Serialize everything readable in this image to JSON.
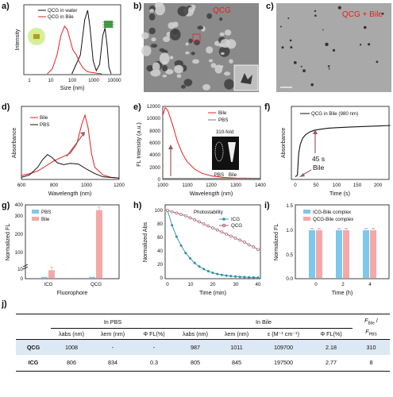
{
  "panels": {
    "a": {
      "label": "a)",
      "xlabel": "Size (nm)",
      "ylabel": "Intensity",
      "ticks": [
        "1",
        "10",
        "100",
        "1000",
        "10000"
      ],
      "legend": [
        "QCG in water",
        "QCG in Bile"
      ]
    },
    "b": {
      "label": "b)",
      "caption": "QCG"
    },
    "c": {
      "label": "c)",
      "caption": "QCG + Bile"
    },
    "d": {
      "label": "d)",
      "xlabel": "Wavelength (nm)",
      "ylabel": "Absorbance",
      "xticks": [
        "600",
        "800",
        "1000",
        "1200"
      ],
      "legend": [
        "Bile",
        "PBS"
      ]
    },
    "e": {
      "label": "e)",
      "xlabel": "Wavelength (nm)",
      "ylabel": "FL Intensity (a.u.)",
      "xticks": [
        "1000",
        "1100",
        "1200",
        "1300",
        "1400"
      ],
      "yticks": [
        "0",
        "2000",
        "4000",
        "6000",
        "8000",
        "10000",
        "12000"
      ],
      "legend": [
        "Bile",
        "PBS"
      ],
      "fold": "310-fold",
      "inset_pbs": "PBS",
      "inset_bile": "Bile"
    },
    "f": {
      "label": "f)",
      "xlabel": "Time (s)",
      "ylabel": "Absorbance",
      "xticks": [
        "0",
        "50",
        "100",
        "150",
        "200"
      ],
      "legend": [
        "QCG in Bile (980 nm)"
      ],
      "ann_time": "45 s",
      "ann_bile": "Bile"
    },
    "g": {
      "label": "g)",
      "xlabel": "Fluorophore",
      "ylabel": "Normalized FL",
      "yticks": [
        "0",
        "10",
        "100",
        "200",
        "300",
        "400"
      ],
      "categories": [
        "ICG",
        "QCG"
      ],
      "legend": [
        "PBS",
        "Bile"
      ]
    },
    "h": {
      "label": "h)",
      "xlabel": "Time (min)",
      "ylabel": "Normalized Abs",
      "xticks": [
        "0",
        "10",
        "20",
        "30",
        "40"
      ],
      "yticks": [
        "0",
        "20",
        "40",
        "60",
        "80",
        "100"
      ],
      "title": "Photostability",
      "legend": [
        "ICG",
        "QCG"
      ]
    },
    "i": {
      "label": "i)",
      "xlabel": "Time (h)",
      "ylabel": "Normalized FL",
      "xticks": [
        "0",
        "2",
        "4"
      ],
      "yticks": [
        "0.0",
        "0.5",
        "1.0",
        "1.5"
      ],
      "legend": [
        "ICG-Bile complex",
        "QCG-Bile complex"
      ]
    },
    "j": {
      "label": "j)"
    }
  },
  "table": {
    "group_pbs": "In PBS",
    "group_bile": "In Bile",
    "last_header_top": "F",
    "last_header_bottom": "F",
    "columns": [
      "λabs (nm)",
      "λem (nm)",
      "Φ FL(%)",
      "λabs (nm)",
      "λem (nm)",
      "ε (M⁻¹ cm⁻¹)",
      "Φ FL(%)"
    ],
    "rows": [
      {
        "name": "QCG",
        "cells": [
          "1008",
          "-",
          "-",
          "987",
          "1011",
          "109700",
          "2.18",
          "310"
        ]
      },
      {
        "name": "ICG",
        "cells": [
          "806",
          "834",
          "0.3",
          "805",
          "845",
          "197500",
          "2.77",
          "8"
        ]
      }
    ]
  },
  "colors": {
    "red": "#e8201f",
    "black": "#111111",
    "blue": "#7cc8ee",
    "pink": "#f4a8a8",
    "teal": "#2b8fa6",
    "mauve": "#9c5a64"
  },
  "chart_data": [
    {
      "panel": "a",
      "type": "line",
      "xlabel": "Size (nm)",
      "ylabel": "Intensity",
      "xscale": "log",
      "xlim": [
        1,
        10000
      ],
      "series": [
        {
          "name": "QCG in water",
          "x": [
            100,
            250,
            400,
            550,
            700,
            1000,
            1400,
            2000,
            2800,
            3600,
            4500,
            5500,
            7000
          ],
          "y": [
            0,
            0.3,
            0.85,
            1.0,
            0.75,
            0.2,
            0.05,
            0.15,
            0.6,
            0.72,
            0.45,
            0.1,
            0
          ]
        },
        {
          "name": "QCG in Bile",
          "x": [
            7,
            12,
            20,
            30,
            45,
            60,
            80,
            110,
            160,
            230,
            320,
            450,
            600,
            900,
            1500,
            2500
          ],
          "y": [
            0,
            0.08,
            0.3,
            0.6,
            0.75,
            0.7,
            0.55,
            0.38,
            0.3,
            0.18,
            0.1,
            0.05,
            0.03,
            0.02,
            0.01,
            0
          ]
        }
      ]
    },
    {
      "panel": "d",
      "type": "line",
      "xlabel": "Wavelength (nm)",
      "ylabel": "Absorbance",
      "xlim": [
        600,
        1200
      ],
      "series": [
        {
          "name": "Bile",
          "x": [
            600,
            650,
            700,
            750,
            800,
            850,
            900,
            940,
            970,
            990,
            1010,
            1030,
            1050,
            1100,
            1150,
            1200
          ],
          "y": [
            0.05,
            0.08,
            0.12,
            0.2,
            0.28,
            0.34,
            0.4,
            0.55,
            0.85,
            1.0,
            0.8,
            0.4,
            0.18,
            0.06,
            0.02,
            0.01
          ]
        },
        {
          "name": "PBS",
          "x": [
            600,
            650,
            700,
            730,
            760,
            790,
            820,
            860,
            900,
            950,
            1000,
            1050,
            1100,
            1200
          ],
          "y": [
            0.02,
            0.06,
            0.18,
            0.3,
            0.38,
            0.33,
            0.25,
            0.22,
            0.24,
            0.23,
            0.15,
            0.08,
            0.03,
            0.01
          ]
        }
      ]
    },
    {
      "panel": "e",
      "type": "line",
      "xlabel": "Wavelength (nm)",
      "ylabel": "FL Intensity (a.u.)",
      "xlim": [
        1000,
        1400
      ],
      "ylim": [
        0,
        12000
      ],
      "series": [
        {
          "name": "Bile",
          "x": [
            1000,
            1010,
            1020,
            1040,
            1060,
            1080,
            1100,
            1130,
            1160,
            1200,
            1250,
            1300,
            1400
          ],
          "y": [
            10500,
            11800,
            11400,
            9000,
            6200,
            4200,
            2800,
            1600,
            900,
            450,
            200,
            100,
            50
          ]
        },
        {
          "name": "PBS",
          "x": [
            1000,
            1400
          ],
          "y": [
            40,
            40
          ]
        }
      ]
    },
    {
      "panel": "f",
      "type": "line",
      "xlabel": "Time (s)",
      "ylabel": "Absorbance",
      "xlim": [
        0,
        230
      ],
      "series": [
        {
          "name": "QCG in Bile (980 nm)",
          "x": [
            0,
            5,
            8,
            12,
            18,
            25,
            35,
            45,
            60,
            80,
            100,
            130,
            160,
            200,
            230
          ],
          "y": [
            0.02,
            0.05,
            0.45,
            0.62,
            0.74,
            0.8,
            0.85,
            0.88,
            0.9,
            0.92,
            0.93,
            0.94,
            0.95,
            0.96,
            0.97
          ]
        }
      ]
    },
    {
      "panel": "g",
      "type": "bar",
      "xlabel": "Fluorophore",
      "ylabel": "Normalized FL",
      "categories": [
        "ICG",
        "QCG"
      ],
      "series": [
        {
          "name": "PBS",
          "values": [
            1,
            1
          ]
        },
        {
          "name": "Bile",
          "values": [
            8,
            310
          ]
        }
      ]
    },
    {
      "panel": "h",
      "type": "line",
      "title": "Photostability",
      "xlabel": "Time (min)",
      "ylabel": "Normalized Abs",
      "xlim": [
        0,
        40
      ],
      "ylim": [
        0,
        100
      ],
      "series": [
        {
          "name": "ICG",
          "x": [
            0,
            2,
            4,
            6,
            8,
            10,
            12,
            14,
            16,
            18,
            20,
            22,
            24,
            26,
            28,
            30,
            32,
            34,
            36,
            38,
            40
          ],
          "y": [
            100,
            78,
            61,
            48,
            37,
            29,
            22,
            17,
            13,
            10,
            7.5,
            5.8,
            4.5,
            3.4,
            2.6,
            2,
            1.5,
            1.2,
            0.9,
            0.7,
            0.5
          ]
        },
        {
          "name": "QCG",
          "x": [
            0,
            2,
            4,
            6,
            8,
            10,
            12,
            14,
            16,
            18,
            20,
            22,
            24,
            26,
            28,
            30,
            32,
            34,
            36,
            38,
            40
          ],
          "y": [
            100,
            98,
            96,
            94,
            92,
            89,
            86,
            83,
            80,
            77,
            74,
            71,
            68,
            65,
            62,
            59,
            56,
            53,
            49,
            46,
            42
          ]
        }
      ]
    },
    {
      "panel": "i",
      "type": "bar",
      "xlabel": "Time (h)",
      "ylabel": "Normalized FL",
      "categories": [
        "0",
        "2",
        "4"
      ],
      "ylim": [
        0,
        1.5
      ],
      "series": [
        {
          "name": "ICG-Bile complex",
          "values": [
            1.0,
            1.0,
            1.0
          ]
        },
        {
          "name": "QCG-Bile complex",
          "values": [
            1.0,
            1.0,
            1.0
          ]
        }
      ]
    }
  ]
}
